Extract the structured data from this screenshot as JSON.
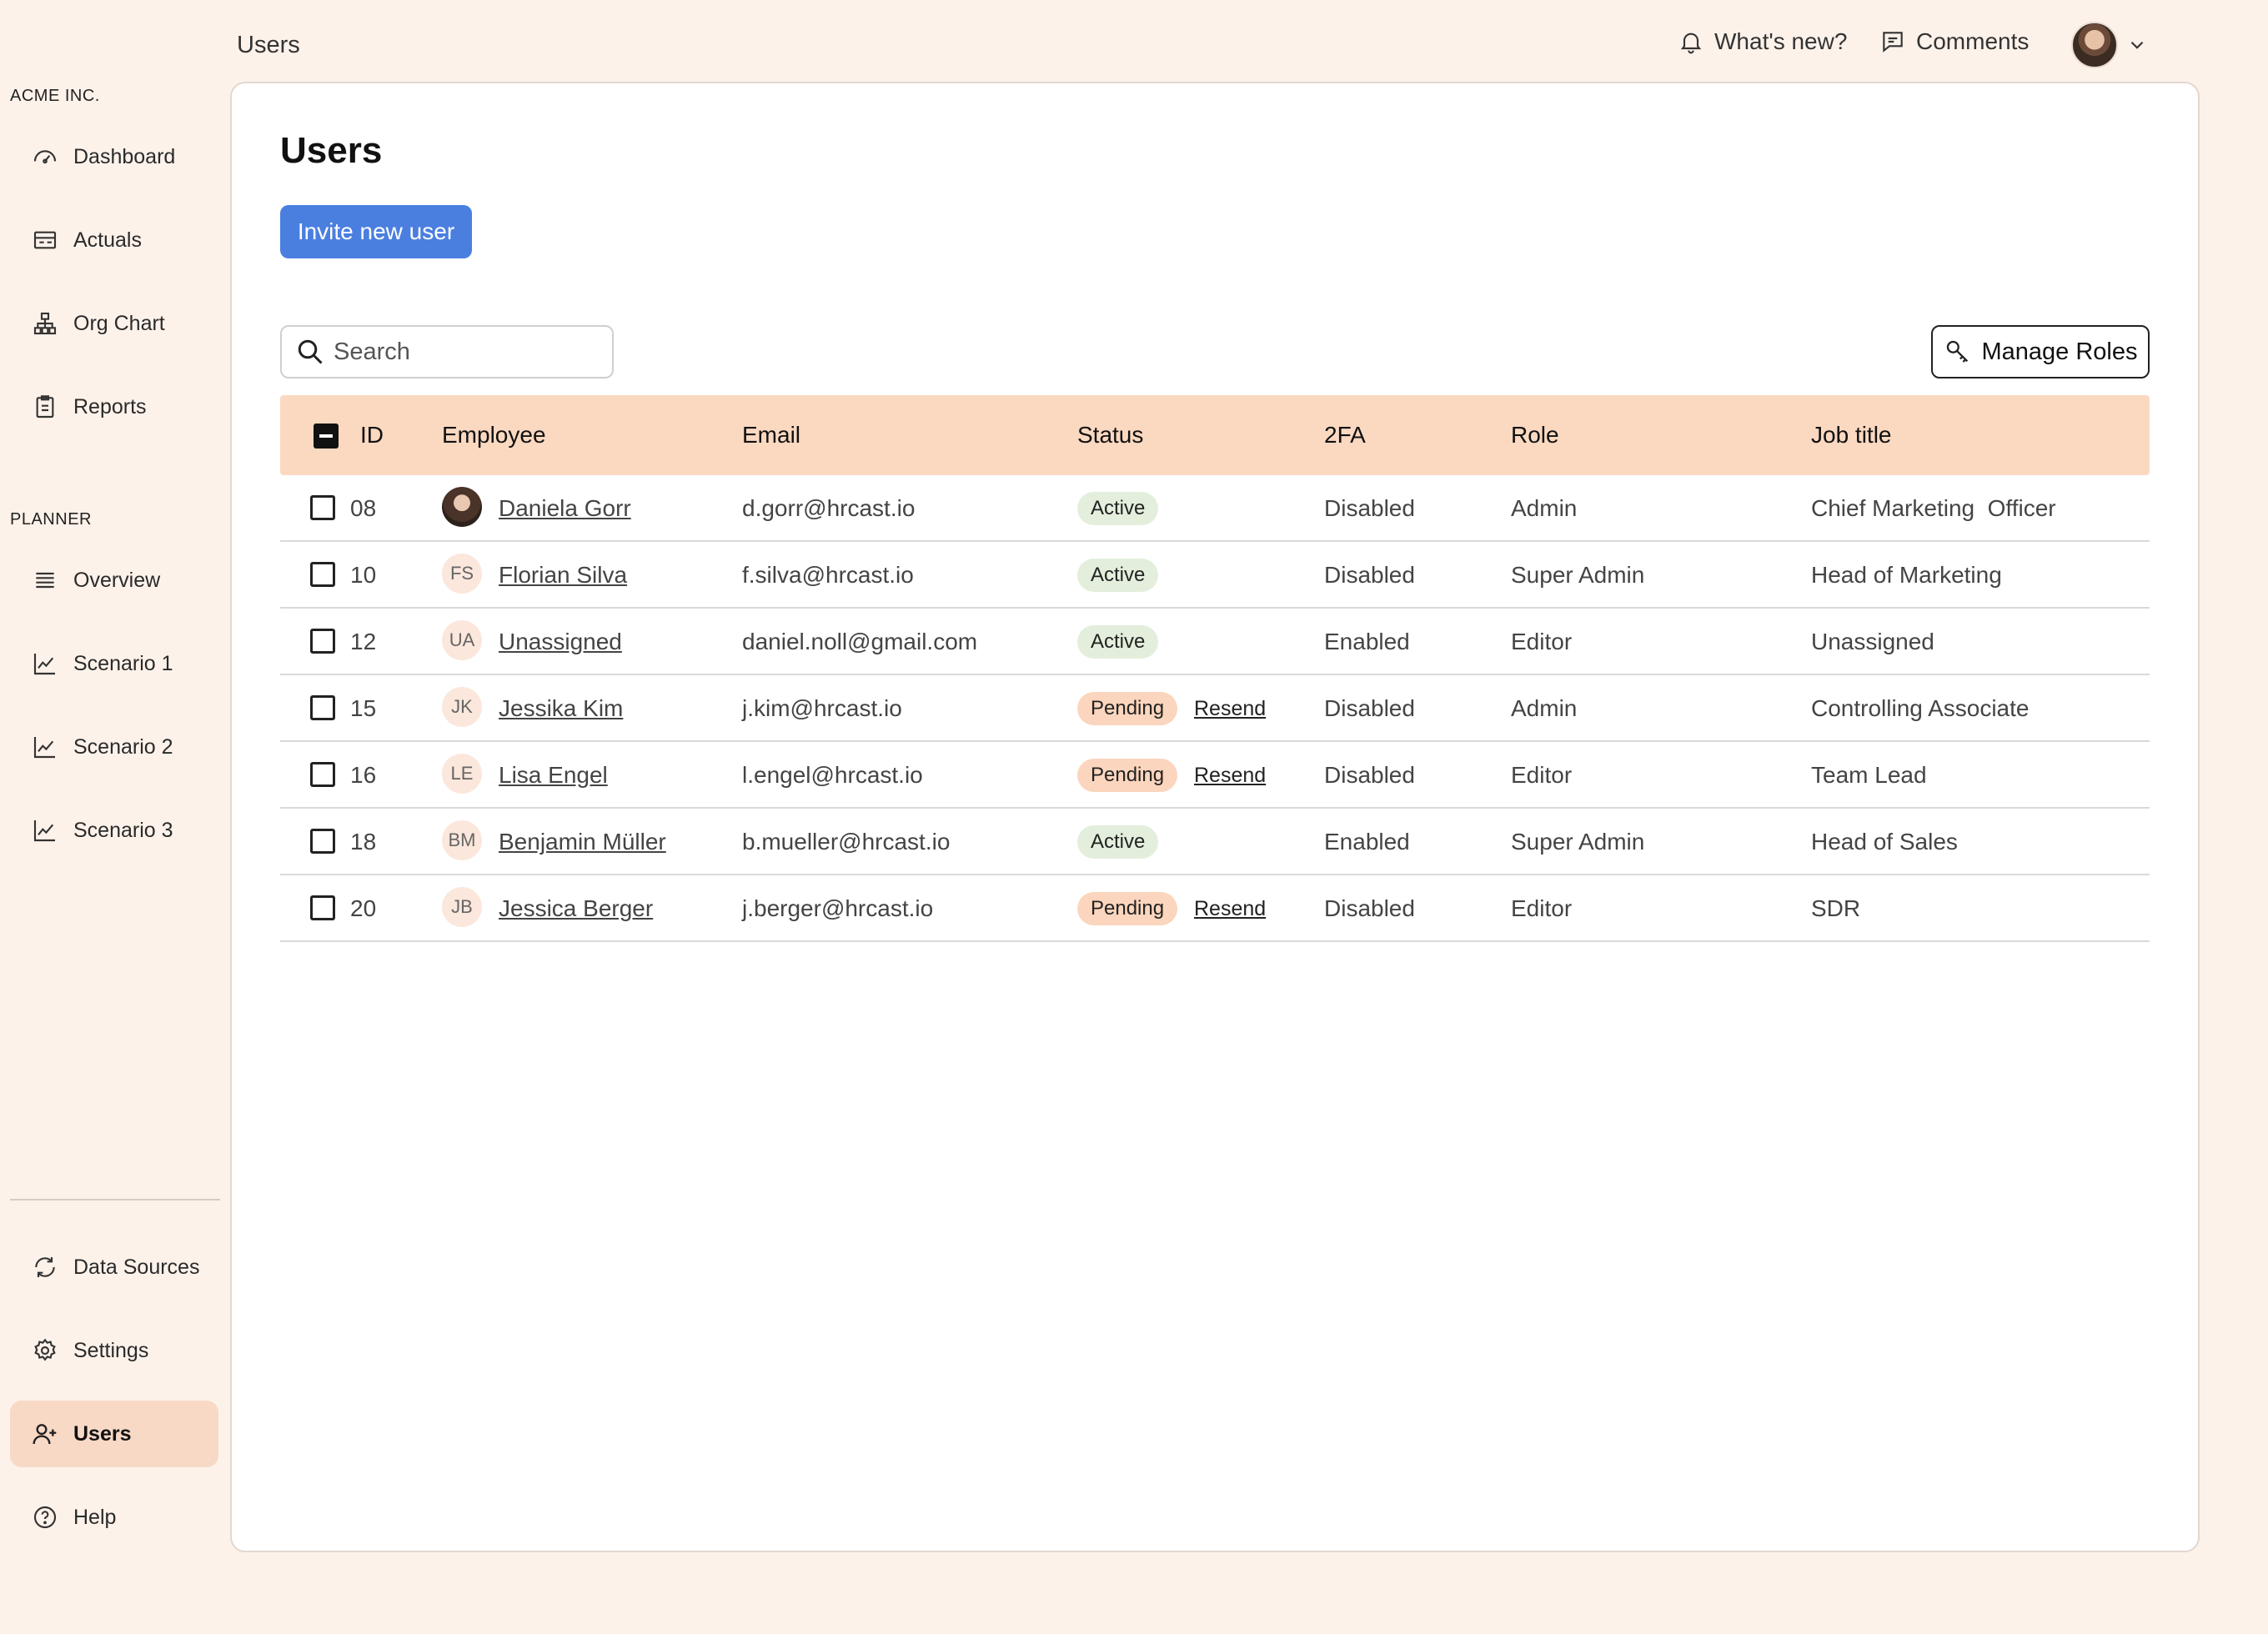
{
  "header": {
    "title": "Users",
    "whats_new": "What's new?",
    "comments": "Comments"
  },
  "sidebar": {
    "company_label": "ACME INC.",
    "planner_label": "PLANNER",
    "top_items": [
      {
        "label": "Dashboard",
        "icon": "gauge-icon"
      },
      {
        "label": "Actuals",
        "icon": "table-icon"
      },
      {
        "label": "Org Chart",
        "icon": "org-chart-icon"
      },
      {
        "label": "Reports",
        "icon": "clipboard-icon"
      }
    ],
    "planner_items": [
      {
        "label": "Overview",
        "icon": "list-icon"
      },
      {
        "label": "Scenario 1",
        "icon": "line-chart-icon"
      },
      {
        "label": "Scenario 2",
        "icon": "line-chart-icon"
      },
      {
        "label": "Scenario 3",
        "icon": "line-chart-icon"
      }
    ],
    "bottom_items": [
      {
        "label": "Data Sources",
        "icon": "refresh-icon"
      },
      {
        "label": "Settings",
        "icon": "gear-icon"
      },
      {
        "label": "Users",
        "icon": "user-plus-icon",
        "active": true
      },
      {
        "label": "Help",
        "icon": "help-icon"
      }
    ]
  },
  "main": {
    "title": "Users",
    "invite_label": "Invite new user",
    "search_placeholder": "Search",
    "manage_roles_label": "Manage Roles"
  },
  "table": {
    "columns": [
      "ID",
      "Employee",
      "Email",
      "Status",
      "2FA",
      "Role",
      "Job title"
    ],
    "rows": [
      {
        "id": "08",
        "initials": "",
        "photo": true,
        "name": "Daniela Gorr",
        "email": "d.gorr@hrcast.io",
        "status": "Active",
        "resend": "",
        "twofa": "Disabled",
        "role": "Admin",
        "job": "Chief Marketing  Officer"
      },
      {
        "id": "10",
        "initials": "FS",
        "name": "Florian Silva",
        "email": "f.silva@hrcast.io",
        "status": "Active",
        "resend": "",
        "twofa": "Disabled",
        "role": "Super Admin",
        "job": "Head of Marketing"
      },
      {
        "id": "12",
        "initials": "UA",
        "name": "Unassigned",
        "email": "daniel.noll@gmail.com",
        "status": "Active",
        "resend": "",
        "twofa": "Enabled",
        "role": "Editor",
        "job": "Unassigned"
      },
      {
        "id": "15",
        "initials": "JK",
        "name": "Jessika Kim",
        "email": "j.kim@hrcast.io",
        "status": "Pending",
        "resend": "Resend",
        "twofa": "Disabled",
        "role": "Admin",
        "job": "Controlling Associate"
      },
      {
        "id": "16",
        "initials": "LE",
        "name": "Lisa Engel",
        "email": "l.engel@hrcast.io",
        "status": "Pending",
        "resend": "Resend",
        "twofa": "Disabled",
        "role": "Editor",
        "job": "Team Lead"
      },
      {
        "id": "18",
        "initials": "BM",
        "name": "Benjamin Müller",
        "email": "b.mueller@hrcast.io",
        "status": "Active",
        "resend": "",
        "twofa": "Enabled",
        "role": "Super Admin",
        "job": "Head of Sales"
      },
      {
        "id": "20",
        "initials": "JB",
        "name": "Jessica Berger",
        "email": "j.berger@hrcast.io",
        "status": "Pending",
        "resend": "Resend",
        "twofa": "Disabled",
        "role": "Editor",
        "job": "SDR"
      }
    ]
  },
  "colors": {
    "background": "#fdf2ea",
    "accent": "#4a7fe0",
    "table_header": "#fbd9c1",
    "active_badge": "#e3efdc",
    "pending_badge": "#fbd5bd",
    "nav_active": "#f8d9c6"
  }
}
